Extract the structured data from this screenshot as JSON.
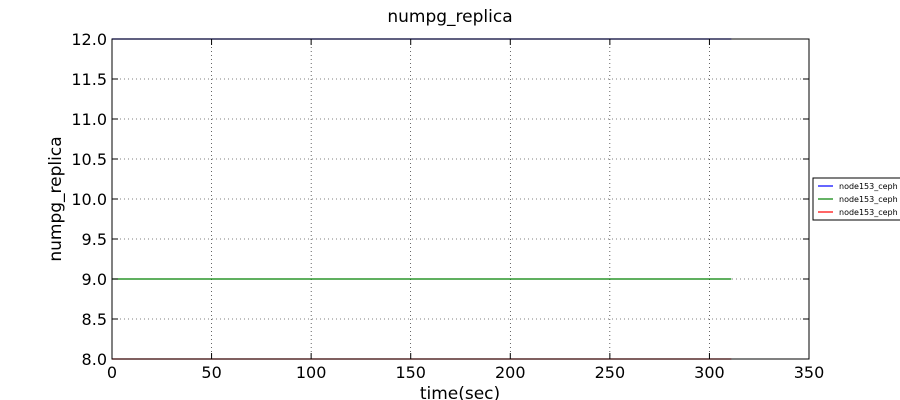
{
  "chart_data": {
    "type": "line",
    "title": "numpg_replica",
    "xlabel": "time(sec)",
    "ylabel": "numpg_replica",
    "xlim": [
      0,
      350
    ],
    "ylim": [
      8.0,
      12.0
    ],
    "xticks": [
      "0",
      "50",
      "100",
      "150",
      "200",
      "250",
      "300",
      "350"
    ],
    "yticks": [
      "8.0",
      "8.5",
      "9.0",
      "9.5",
      "10.0",
      "10.5",
      "11.0",
      "11.5",
      "12.0"
    ],
    "grid": true,
    "legend_position": "right, outside axes (clipped)",
    "series": [
      {
        "name": "node153_ceph",
        "color": "#0000ff",
        "x": [
          0,
          311
        ],
        "y": [
          12.0,
          12.0
        ]
      },
      {
        "name": "node153_ceph",
        "color": "#008000",
        "x": [
          0,
          311
        ],
        "y": [
          9.0,
          9.0
        ]
      },
      {
        "name": "node153_ceph",
        "color": "#ff0000",
        "x": [
          0,
          311
        ],
        "y": [
          8.0,
          8.0
        ]
      }
    ]
  }
}
